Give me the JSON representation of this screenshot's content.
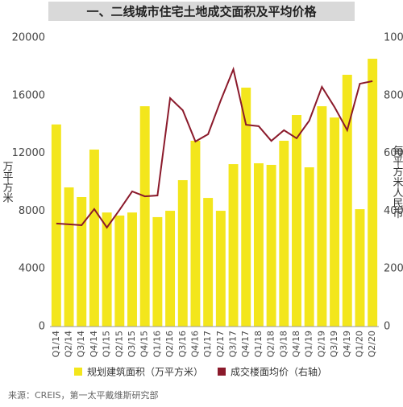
{
  "chart_data": {
    "type": "bar-line",
    "title": "一、二线城市住宅土地成交面积及平均价格",
    "y_label": "万平方米",
    "y2_label": "每平方米人民币",
    "source": "来源：CREIS，第一太平戴维斯研究部",
    "categories": [
      "Q1/14",
      "Q2/14",
      "Q3/14",
      "Q4/14",
      "Q1/15",
      "Q2/15",
      "Q3/15",
      "Q4/15",
      "Q1/16",
      "Q2/16",
      "Q3/16",
      "Q4/16",
      "Q1/17",
      "Q2/17",
      "Q3/17",
      "Q4/17",
      "Q1/18",
      "Q2/18",
      "Q3/18",
      "Q4/18",
      "Q1/19",
      "Q2/19",
      "Q3/19",
      "Q4/19",
      "Q1/20",
      "Q2/20"
    ],
    "series": [
      {
        "name": "规划建筑面积（万平方米）",
        "color": "#f3e61c",
        "type": "bar",
        "values": [
          14000,
          9640,
          8970,
          12260,
          7900,
          7690,
          7900,
          15260,
          7580,
          8020,
          10140,
          12870,
          8910,
          8020,
          11250,
          16550,
          11310,
          11200,
          12870,
          14650,
          11030,
          15260,
          14480,
          17440,
          8130,
          18550
        ]
      },
      {
        "name": "成交楼面均价（右轴）",
        "color": "#8b1a2b",
        "type": "line",
        "axis": "y2",
        "values": [
          3570,
          3540,
          3510,
          4070,
          3430,
          4040,
          4680,
          4510,
          4540,
          7910,
          7490,
          6410,
          6660,
          7830,
          8910,
          6990,
          6940,
          6430,
          6800,
          6520,
          7130,
          8300,
          7600,
          6800,
          8410,
          8500
        ]
      }
    ],
    "ylim": [
      0,
      20000
    ],
    "yticks": [
      0,
      4000,
      8000,
      12000,
      16000,
      20000
    ],
    "y2lim": [
      0,
      10000
    ],
    "y2ticks": [
      0,
      2000,
      4000,
      6000,
      8000,
      10000
    ]
  }
}
